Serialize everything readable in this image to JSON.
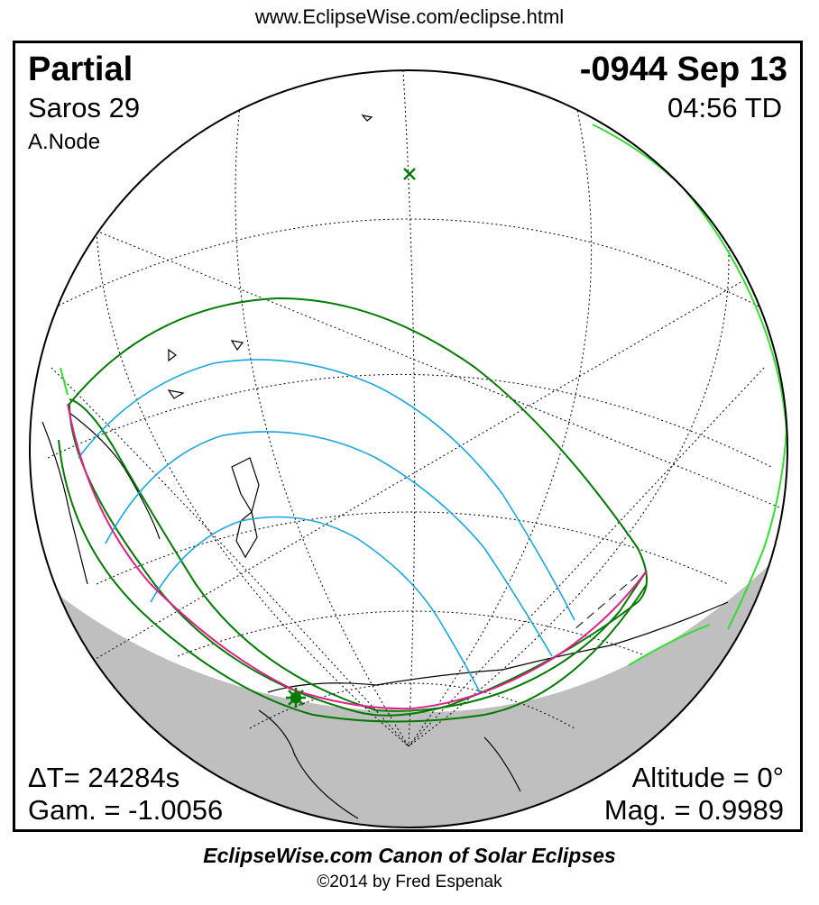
{
  "header": {
    "url": "www.EclipseWise.com/eclipse.html"
  },
  "eclipse": {
    "type": "Partial",
    "date": "-0944 Sep 13",
    "saros": "Saros  29",
    "time": "04:56 TD",
    "node": "A.Node",
    "delta_t": "ΔT=  24284s",
    "gamma": "Gam. = -1.0056",
    "altitude": "Altitude =  0°",
    "magnitude": "Mag. = 0.9989"
  },
  "footer": {
    "title": "EclipseWise.com Canon of Solar Eclipses",
    "copyright": "©2014 by Fred Espenak"
  },
  "colors": {
    "penumbra_limits": "#007a00",
    "magnitude_curves": "#1aa6e0",
    "max_eclipse_curve": "#e0208a",
    "coastline_highlight": "#33dd33",
    "night_shading": "#bfbfbf",
    "grid": "#000000"
  },
  "markers": {
    "greatest_eclipse_icon": "star-burst",
    "subsolar_point_icon": "cross-x"
  }
}
